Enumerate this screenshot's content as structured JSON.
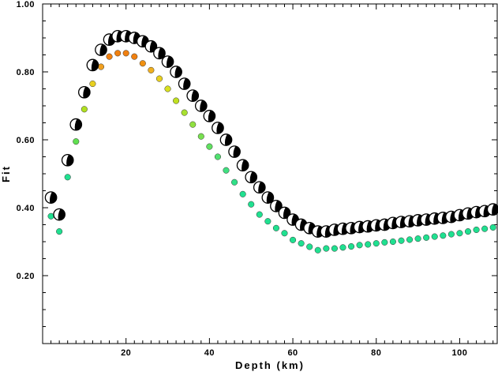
{
  "chart_data": {
    "type": "scatter",
    "title": "",
    "xlabel": "Depth (km)",
    "ylabel": "Fit",
    "xlim": [
      0,
      109
    ],
    "ylim": [
      0.0,
      1.0
    ],
    "x_ticks": [
      20,
      40,
      60,
      80,
      100
    ],
    "y_ticks": [
      0.2,
      0.4,
      0.6,
      0.8,
      1.0
    ],
    "x_tick_labels": [
      "20",
      "40",
      "60",
      "80",
      "100"
    ],
    "y_tick_labels": [
      "0.20",
      "0.40",
      "0.60",
      "0.80",
      "1.00"
    ],
    "grid": false,
    "legend": "none",
    "series": [
      {
        "marker": "beachball",
        "x": [
          2,
          4,
          6,
          8,
          10,
          12,
          14,
          16,
          18,
          20,
          22,
          24,
          26,
          28,
          30,
          32,
          34,
          36,
          38,
          40,
          42,
          44,
          46,
          48,
          50,
          52,
          54,
          56,
          58,
          60,
          62,
          64,
          66,
          68,
          70,
          72,
          74,
          76,
          78,
          80,
          82,
          84,
          86,
          88,
          90,
          92,
          94,
          96,
          98,
          100,
          102,
          104,
          106,
          108
        ],
        "y": [
          0.43,
          0.38,
          0.54,
          0.645,
          0.74,
          0.82,
          0.865,
          0.895,
          0.905,
          0.905,
          0.9,
          0.89,
          0.875,
          0.855,
          0.83,
          0.8,
          0.765,
          0.73,
          0.7,
          0.67,
          0.635,
          0.6,
          0.565,
          0.525,
          0.49,
          0.46,
          0.43,
          0.405,
          0.385,
          0.365,
          0.35,
          0.34,
          0.33,
          0.33,
          0.335,
          0.338,
          0.34,
          0.343,
          0.345,
          0.348,
          0.35,
          0.355,
          0.358,
          0.36,
          0.363,
          0.365,
          0.368,
          0.37,
          0.373,
          0.378,
          0.383,
          0.387,
          0.39,
          0.395
        ]
      },
      {
        "marker": "dot",
        "x": [
          2,
          4,
          6,
          8,
          10,
          12,
          14,
          16,
          18,
          20,
          22,
          24,
          26,
          28,
          30,
          32,
          34,
          36,
          38,
          40,
          42,
          44,
          46,
          48,
          50,
          52,
          54,
          56,
          58,
          60,
          62,
          64,
          66,
          68,
          70,
          72,
          74,
          76,
          78,
          80,
          82,
          84,
          86,
          88,
          90,
          92,
          94,
          96,
          98,
          100,
          102,
          104,
          106,
          108
        ],
        "y": [
          0.375,
          0.33,
          0.49,
          0.595,
          0.69,
          0.765,
          0.815,
          0.845,
          0.855,
          0.855,
          0.845,
          0.825,
          0.805,
          0.78,
          0.75,
          0.715,
          0.68,
          0.645,
          0.61,
          0.58,
          0.55,
          0.51,
          0.475,
          0.44,
          0.41,
          0.38,
          0.36,
          0.34,
          0.325,
          0.305,
          0.295,
          0.285,
          0.275,
          0.28,
          0.28,
          0.283,
          0.286,
          0.29,
          0.292,
          0.295,
          0.298,
          0.3,
          0.303,
          0.306,
          0.309,
          0.312,
          0.315,
          0.318,
          0.322,
          0.325,
          0.33,
          0.335,
          0.338,
          0.342
        ],
        "colors": [
          "#20e090",
          "#20e090",
          "#20e090",
          "#60e050",
          "#b0e020",
          "#e8d020",
          "#f0a020",
          "#f08010",
          "#f08010",
          "#f08010",
          "#f08010",
          "#f09010",
          "#f0b020",
          "#e8d020",
          "#d8e020",
          "#c0e020",
          "#a8e030",
          "#90e040",
          "#78e050",
          "#60e060",
          "#50e070",
          "#40e080",
          "#30e088",
          "#20e090",
          "#20e090",
          "#20e090",
          "#20e090",
          "#20e090",
          "#20e090",
          "#20e090",
          "#20e090",
          "#20e090",
          "#20e090",
          "#20e090",
          "#20e090",
          "#20e090",
          "#20e090",
          "#20e090",
          "#20e090",
          "#20e090",
          "#20e090",
          "#20e090",
          "#20e090",
          "#20e090",
          "#20e090",
          "#20e090",
          "#20e090",
          "#20e090",
          "#20e090",
          "#20e090",
          "#20e090",
          "#20e090",
          "#20e090",
          "#20e090"
        ]
      }
    ]
  }
}
